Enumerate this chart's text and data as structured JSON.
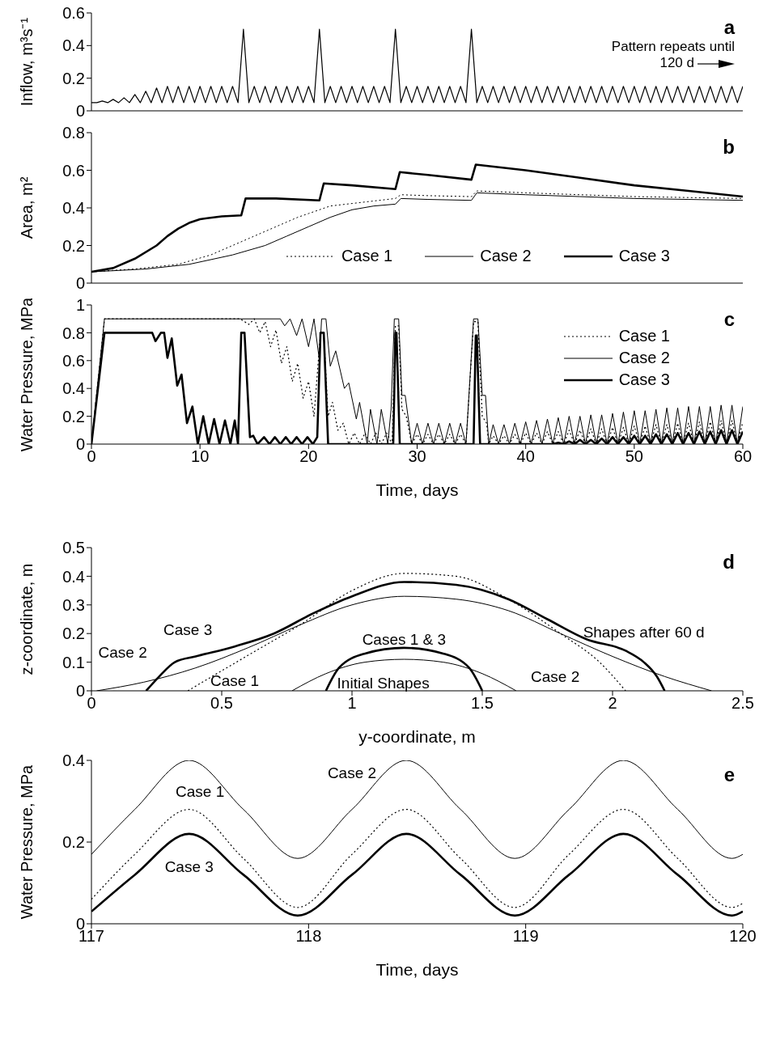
{
  "chart_data": [
    {
      "type": "line",
      "ylabel": "Inflow, m³s⁻¹",
      "annotations": [
        "a",
        "Pattern repeats until 120 d"
      ],
      "xlim": [
        0,
        60
      ],
      "xticks": [
        0,
        10,
        20,
        30,
        40,
        50,
        60
      ],
      "ylim": [
        0,
        0.6
      ],
      "yticks": [
        0,
        0.2,
        0.4,
        0.6
      ],
      "tick_labels": "y",
      "color": "#000000",
      "x": [
        0,
        0.5,
        1,
        1.5,
        2,
        2.5,
        3,
        3.5,
        4,
        4.5,
        5,
        5.5,
        6,
        6.5,
        7,
        7.5,
        8,
        8.5,
        9,
        9.5,
        10,
        10.5,
        11,
        11.5,
        12,
        12.5,
        13,
        13.5,
        14,
        14.5,
        15,
        15.5,
        16,
        16.5,
        17,
        17.5,
        18,
        18.5,
        19,
        19.5,
        20,
        20.5,
        21,
        21.5,
        22,
        22.5,
        23,
        23.5,
        24,
        24.5,
        25,
        25.5,
        26,
        26.5,
        27,
        27.5,
        28,
        28.5,
        29,
        29.5,
        30,
        30.5,
        31,
        31.5,
        32,
        32.5,
        33,
        33.5,
        34,
        34.5,
        35,
        35.5,
        36,
        36.5,
        37,
        37.5,
        38,
        38.5,
        39,
        39.5,
        40,
        40.5,
        41,
        41.5,
        42,
        42.5,
        43,
        43.5,
        44,
        44.5,
        45,
        45.5,
        46,
        46.5,
        47,
        47.5,
        48,
        48.5,
        49,
        49.5,
        50,
        50.5,
        51,
        51.5,
        52,
        52.5,
        53,
        53.5,
        54,
        54.5,
        55,
        55.5,
        56,
        56.5,
        57,
        57.5,
        58,
        58.5,
        59,
        59.5,
        60
      ],
      "values": [
        0.05,
        0.05,
        0.06,
        0.05,
        0.07,
        0.05,
        0.08,
        0.05,
        0.1,
        0.05,
        0.12,
        0.05,
        0.14,
        0.05,
        0.15,
        0.05,
        0.15,
        0.05,
        0.15,
        0.05,
        0.15,
        0.05,
        0.15,
        0.05,
        0.15,
        0.05,
        0.15,
        0.05,
        0.5,
        0.05,
        0.15,
        0.05,
        0.15,
        0.05,
        0.15,
        0.05,
        0.15,
        0.05,
        0.15,
        0.05,
        0.15,
        0.05,
        0.5,
        0.05,
        0.15,
        0.05,
        0.15,
        0.05,
        0.15,
        0.05,
        0.15,
        0.05,
        0.15,
        0.05,
        0.15,
        0.05,
        0.5,
        0.05,
        0.15,
        0.05,
        0.15,
        0.05,
        0.15,
        0.05,
        0.15,
        0.05,
        0.15,
        0.05,
        0.15,
        0.05,
        0.5,
        0.05,
        0.15,
        0.05,
        0.15,
        0.05,
        0.15,
        0.05,
        0.15,
        0.05,
        0.15,
        0.05,
        0.15,
        0.05,
        0.15,
        0.05,
        0.15,
        0.05,
        0.15,
        0.05,
        0.15,
        0.05,
        0.15,
        0.05,
        0.15,
        0.05,
        0.15,
        0.05,
        0.15,
        0.05,
        0.15,
        0.05,
        0.15,
        0.05,
        0.15,
        0.05,
        0.15,
        0.05,
        0.15,
        0.05,
        0.15,
        0.05,
        0.15,
        0.05,
        0.15,
        0.05,
        0.15,
        0.05,
        0.15,
        0.05,
        0.15
      ]
    },
    {
      "type": "line",
      "ylabel": "Area, m²",
      "annotations": [
        "b"
      ],
      "xlim": [
        0,
        60
      ],
      "xticks": [
        0,
        10,
        20,
        30,
        40,
        50,
        60
      ],
      "ylim": [
        0,
        0.8
      ],
      "yticks": [
        0,
        0.2,
        0.4,
        0.6,
        0.8
      ],
      "tick_labels": "y",
      "legend": "bottom right",
      "series": [
        {
          "name": "Case 1",
          "color": "#000000",
          "line_style": "dotted",
          "x": [
            0,
            4,
            8,
            11,
            13,
            15,
            17,
            19,
            20,
            21,
            22,
            23.5,
            25,
            26.5,
            28,
            28.5,
            31,
            35,
            35.5,
            40,
            45,
            50,
            55,
            60
          ],
          "values": [
            0.06,
            0.075,
            0.1,
            0.15,
            0.2,
            0.25,
            0.3,
            0.35,
            0.37,
            0.39,
            0.41,
            0.42,
            0.43,
            0.44,
            0.45,
            0.47,
            0.465,
            0.46,
            0.49,
            0.48,
            0.47,
            0.46,
            0.455,
            0.45
          ]
        },
        {
          "name": "Case 2",
          "color": "#000000",
          "line_style": "solid",
          "x": [
            0,
            5,
            9,
            13,
            16,
            18,
            20,
            22,
            24,
            26,
            28,
            28.5,
            31,
            35,
            35.5,
            40,
            45,
            50,
            55,
            60
          ],
          "values": [
            0.06,
            0.075,
            0.1,
            0.15,
            0.2,
            0.25,
            0.3,
            0.35,
            0.39,
            0.41,
            0.42,
            0.45,
            0.445,
            0.44,
            0.48,
            0.47,
            0.46,
            0.45,
            0.445,
            0.44
          ]
        },
        {
          "name": "Case 3",
          "color": "#000000",
          "line_style": "solid",
          "x": [
            0,
            2,
            4,
            6,
            7,
            8,
            9,
            10,
            12,
            13.8,
            14.2,
            17,
            21,
            21.4,
            24,
            28,
            28.4,
            31,
            35,
            35.4,
            40,
            45,
            50,
            55,
            60
          ],
          "values": [
            0.06,
            0.08,
            0.13,
            0.2,
            0.25,
            0.29,
            0.32,
            0.34,
            0.355,
            0.36,
            0.45,
            0.45,
            0.44,
            0.53,
            0.52,
            0.5,
            0.59,
            0.575,
            0.55,
            0.63,
            0.6,
            0.56,
            0.52,
            0.49,
            0.46
          ]
        }
      ]
    },
    {
      "type": "line",
      "xlabel": "Time, days",
      "ylabel": "Water Pressure, MPa",
      "annotations": [
        "c"
      ],
      "xlim": [
        0,
        60
      ],
      "xticks": [
        0,
        10,
        20,
        30,
        40,
        50,
        60
      ],
      "ylim": [
        0,
        1
      ],
      "yticks": [
        0,
        0.2,
        0.4,
        0.6,
        0.8,
        1
      ],
      "legend": "top right",
      "series": [
        {
          "name": "Case 1",
          "color": "#000000",
          "line_style": "dotted",
          "x": [
            0,
            1.2,
            13.7,
            14.5,
            15,
            15.5,
            16,
            16.5,
            17,
            17.5,
            18,
            18.5,
            19,
            19.5,
            20,
            20.5,
            21.1,
            21.4,
            21.8,
            22.2,
            22.7,
            23.2,
            23.7,
            24.2,
            24.7,
            25.2,
            25.7,
            26.2,
            26.7,
            27.2,
            27.7,
            28,
            28.3,
            28.6,
            29,
            29.5,
            30,
            30.5,
            31,
            31.5,
            32,
            32.5,
            33,
            33.5,
            34,
            34.5,
            35.2,
            35.6,
            36,
            36.4,
            36.6,
            37,
            37.5,
            38,
            38.5,
            39,
            39.5,
            40,
            40.5,
            41,
            41.5,
            42,
            42.5,
            43,
            43.5,
            44,
            44.5,
            45,
            45.5,
            46,
            46.5,
            47,
            47.5,
            48,
            48.5,
            49,
            49.5,
            50,
            50.5,
            51,
            51.5,
            52,
            52.5,
            53,
            53.5,
            54,
            54.5,
            55,
            55.5,
            56,
            56.5,
            57,
            57.5,
            58,
            58.5,
            59,
            59.5,
            60
          ],
          "values": [
            0,
            0.9,
            0.9,
            0.86,
            0.9,
            0.8,
            0.88,
            0.7,
            0.82,
            0.58,
            0.7,
            0.45,
            0.58,
            0.33,
            0.45,
            0.2,
            0.8,
            0.8,
            0.2,
            0.3,
            0.1,
            0.15,
            0,
            0.08,
            0,
            0.08,
            0,
            0.08,
            0,
            0.08,
            0,
            0.85,
            0.85,
            0.25,
            0.2,
            0,
            0.07,
            0,
            0.07,
            0,
            0.07,
            0,
            0.07,
            0,
            0.07,
            0,
            0.88,
            0.88,
            0.2,
            0.15,
            0,
            0.06,
            0,
            0.06,
            0,
            0.07,
            0,
            0.08,
            0,
            0.08,
            0,
            0.09,
            0,
            0.09,
            0,
            0.1,
            0,
            0.1,
            0,
            0.11,
            0,
            0.11,
            0,
            0.12,
            0,
            0.12,
            0,
            0.13,
            0,
            0.13,
            0,
            0.14,
            0,
            0.14,
            0,
            0.15,
            0,
            0.15,
            0,
            0.16,
            0,
            0.16,
            0,
            0.17,
            0,
            0.17,
            0,
            0.16
          ]
        },
        {
          "name": "Case 2",
          "color": "#000000",
          "line_style": "solid",
          "x": [
            0,
            1.2,
            17.4,
            17.8,
            18.3,
            18.9,
            19.4,
            20,
            20.5,
            21,
            21.2,
            21.6,
            22,
            22.5,
            23.3,
            23.7,
            24.4,
            24.7,
            25.4,
            25.7,
            26.3,
            26.7,
            27.3,
            27.6,
            27.9,
            28.3,
            28.6,
            28.9,
            29.5,
            30,
            30.5,
            31,
            31.5,
            32,
            32.5,
            33,
            33.5,
            34,
            34.5,
            35.2,
            35.6,
            36,
            36.3,
            36.6,
            37,
            37.5,
            38,
            38.5,
            39,
            39.5,
            40,
            40.5,
            41,
            41.5,
            42,
            42.5,
            43,
            43.5,
            44,
            44.5,
            45,
            45.5,
            46,
            46.5,
            47,
            47.5,
            48,
            48.5,
            49,
            49.5,
            50,
            50.5,
            51,
            51.5,
            52,
            52.5,
            53,
            53.5,
            54,
            54.5,
            55,
            55.5,
            56,
            56.5,
            57,
            57.5,
            58,
            58.5,
            59,
            59.5,
            60
          ],
          "values": [
            0,
            0.9,
            0.9,
            0.85,
            0.9,
            0.78,
            0.9,
            0.7,
            0.9,
            0.6,
            0.9,
            0.9,
            0.56,
            0.67,
            0.4,
            0.44,
            0.18,
            0.3,
            0,
            0.25,
            0,
            0.25,
            0,
            0.25,
            0.9,
            0.9,
            0.35,
            0.35,
            0,
            0.15,
            0,
            0.15,
            0,
            0.15,
            0,
            0.15,
            0,
            0.15,
            0,
            0.9,
            0.9,
            0.35,
            0.35,
            0,
            0.14,
            0,
            0.14,
            0,
            0.15,
            0,
            0.16,
            0,
            0.17,
            0,
            0.18,
            0,
            0.19,
            0,
            0.2,
            0,
            0.2,
            0,
            0.21,
            0,
            0.21,
            0,
            0.22,
            0,
            0.23,
            0,
            0.24,
            0,
            0.24,
            0,
            0.25,
            0,
            0.26,
            0,
            0.26,
            0,
            0.27,
            0,
            0.27,
            0,
            0.27,
            0,
            0.28,
            0,
            0.28,
            0,
            0.27
          ]
        },
        {
          "name": "Case 3",
          "color": "#000000",
          "line_style": "solid",
          "x": [
            0,
            1.2,
            5.6,
            5.9,
            6.4,
            6.7,
            7,
            7.4,
            7.9,
            8.3,
            8.8,
            9.3,
            9.8,
            10.3,
            10.8,
            11.3,
            11.8,
            12.3,
            12.8,
            13.2,
            13.5,
            13.8,
            14.1,
            14.6,
            14.9,
            15.3,
            15.9,
            16.4,
            16.9,
            17.4,
            17.9,
            18.4,
            18.9,
            19.4,
            19.9,
            20.4,
            20.8,
            21.1,
            21.4,
            21.8,
            27.8,
            28,
            28.1,
            28.4,
            35.2,
            35.4,
            35.5,
            35.8,
            42.5,
            43,
            43.5,
            44,
            44.5,
            45,
            45.5,
            46,
            46.5,
            47,
            47.5,
            48,
            48.5,
            49,
            49.5,
            50,
            50.5,
            51,
            51.5,
            52,
            52.5,
            53,
            53.5,
            54,
            54.5,
            55,
            55.5,
            56,
            56.5,
            57,
            57.5,
            58,
            58.5,
            59,
            59.5,
            60
          ],
          "values": [
            0,
            0.8,
            0.8,
            0.74,
            0.8,
            0.8,
            0.62,
            0.76,
            0.42,
            0.5,
            0.15,
            0.27,
            0,
            0.2,
            0,
            0.18,
            0,
            0.17,
            0,
            0.17,
            0,
            0.8,
            0.8,
            0.05,
            0.06,
            0,
            0.05,
            0,
            0.05,
            0,
            0.05,
            0,
            0.05,
            0,
            0.05,
            0,
            0.05,
            0.8,
            0.8,
            0,
            0,
            0.8,
            0.8,
            0,
            0,
            0.78,
            0.78,
            0,
            0,
            0.01,
            0,
            0.02,
            0,
            0.03,
            0,
            0.03,
            0,
            0.04,
            0,
            0.05,
            0,
            0.05,
            0,
            0.06,
            0,
            0.06,
            0,
            0.07,
            0,
            0.07,
            0,
            0.08,
            0,
            0.08,
            0,
            0.09,
            0,
            0.09,
            0,
            0.1,
            0,
            0.1,
            0,
            0.09
          ]
        }
      ]
    },
    {
      "type": "line",
      "xlabel": "y-coordinate, m",
      "ylabel": "z-coordinate, m",
      "xlim": [
        0,
        2.5
      ],
      "xticks": [
        0,
        0.5,
        1,
        1.5,
        2,
        2.5
      ],
      "ylim": [
        0,
        0.5
      ],
      "yticks": [
        0,
        0.1,
        0.2,
        0.3,
        0.4,
        0.5
      ],
      "annotations": [
        "d",
        "Case 3",
        "Case 2",
        "Case 1",
        "Cases 1 & 3",
        "Case 2",
        "Initial Shapes",
        "Shapes after 60 d"
      ],
      "series": [
        {
          "color": "#000000",
          "line_style": "dotted",
          "x": [
            0.37,
            0.5,
            0.65,
            0.8,
            1,
            1.2,
            1.4,
            1.6,
            1.8,
            1.95,
            2.05
          ],
          "values": [
            0,
            0.07,
            0.15,
            0.23,
            0.35,
            0.41,
            0.4,
            0.32,
            0.2,
            0.1,
            0
          ]
        },
        {
          "color": "#000000",
          "line_style": "solid",
          "x": [
            0.02,
            0.2,
            0.4,
            0.6,
            0.8,
            1,
            1.2,
            1.4,
            1.6,
            1.8,
            2,
            2.2,
            2.38
          ],
          "values": [
            0,
            0.03,
            0.08,
            0.15,
            0.23,
            0.3,
            0.33,
            0.32,
            0.28,
            0.2,
            0.12,
            0.05,
            0
          ]
        },
        {
          "color": "#000000",
          "line_style": "solid",
          "x": [
            0.21,
            0.26,
            0.32,
            0.4,
            0.55,
            0.7,
            0.85,
            1,
            1.2,
            1.4,
            1.6,
            1.75,
            1.9,
            2.05,
            2.12,
            2.17,
            2.2
          ],
          "values": [
            0,
            0.05,
            0.1,
            0.12,
            0.155,
            0.2,
            0.27,
            0.33,
            0.38,
            0.37,
            0.32,
            0.25,
            0.18,
            0.14,
            0.1,
            0.05,
            0
          ]
        },
        {
          "color": "#000000",
          "line_style": "solid",
          "x": [
            0.9,
            0.95,
            1.05,
            1.2,
            1.35,
            1.45,
            1.5
          ],
          "values": [
            0,
            0.08,
            0.13,
            0.15,
            0.13,
            0.08,
            0
          ]
        },
        {
          "color": "#000000",
          "line_style": "solid",
          "x": [
            0.77,
            0.9,
            1.05,
            1.2,
            1.35,
            1.5,
            1.63
          ],
          "values": [
            0,
            0.06,
            0.1,
            0.11,
            0.1,
            0.06,
            0
          ]
        }
      ]
    },
    {
      "type": "line",
      "xlabel": "Time, days",
      "ylabel": "Water Pressure, MPa",
      "xlim": [
        117,
        120
      ],
      "xticks": [
        117,
        118,
        119,
        120
      ],
      "ylim": [
        0,
        0.4
      ],
      "yticks": [
        0,
        0.2,
        0.4
      ],
      "annotations": [
        "e",
        "Case 1",
        "Case 2",
        "Case 3"
      ],
      "x": [
        117,
        117.2,
        117.45,
        117.7,
        117.95,
        118.2,
        118.45,
        118.7,
        118.95,
        119.2,
        119.45,
        119.7,
        119.95,
        120
      ],
      "series": [
        {
          "color": "#000000",
          "line_style": "dotted",
          "values": [
            0.06,
            0.17,
            0.28,
            0.16,
            0.04,
            0.17,
            0.28,
            0.16,
            0.04,
            0.17,
            0.28,
            0.16,
            0.04,
            0.05
          ]
        },
        {
          "color": "#000000",
          "line_style": "solid",
          "values": [
            0.17,
            0.28,
            0.4,
            0.28,
            0.16,
            0.28,
            0.4,
            0.28,
            0.16,
            0.28,
            0.4,
            0.28,
            0.16,
            0.17
          ]
        },
        {
          "color": "#000000",
          "line_style": "solid",
          "values": [
            0.03,
            0.12,
            0.22,
            0.12,
            0.02,
            0.12,
            0.22,
            0.12,
            0.02,
            0.12,
            0.22,
            0.12,
            0.02,
            0.03
          ]
        }
      ]
    }
  ]
}
